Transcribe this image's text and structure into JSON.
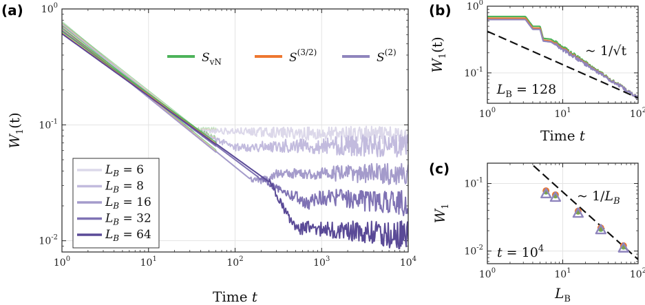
{
  "panel_labels": {
    "a": "(a)",
    "b": "(b)",
    "c": "(c)"
  },
  "colors": {
    "svn": "#4db35a",
    "s32": "#ee7730",
    "s2": "#8f85bd",
    "LB": [
      "#dcd8ea",
      "#c2bbde",
      "#a49bcb",
      "#7f72b4",
      "#5a4a97"
    ]
  },
  "chart_data": [
    {
      "id": "a",
      "type": "line",
      "title": "",
      "xlabel": "Time t",
      "ylabel": "W_1(t)",
      "xscale": "log",
      "yscale": "log",
      "xlim": [
        1,
        10000
      ],
      "ylim": [
        0.008,
        1
      ],
      "grid": true,
      "xticks": [
        1,
        10,
        100,
        1000,
        10000
      ],
      "xtick_labels": [
        {
          "b": "10",
          "e": "0"
        },
        {
          "b": "10",
          "e": "1"
        },
        {
          "b": "10",
          "e": "2"
        },
        {
          "b": "10",
          "e": "3"
        },
        {
          "b": "10",
          "e": "4"
        }
      ],
      "yticks": [
        0.01,
        0.1,
        1
      ],
      "ytick_labels": [
        {
          "b": "10",
          "e": "-2"
        },
        {
          "b": "10",
          "e": "-1"
        },
        {
          "b": "10",
          "e": "0"
        }
      ],
      "entropy_legend": [
        {
          "key": "svn",
          "label": "S",
          "sub": "vN",
          "sup": ""
        },
        {
          "key": "s32",
          "label": "S",
          "sub": "",
          "sup": "(3/2)"
        },
        {
          "key": "s2",
          "label": "S",
          "sub": "",
          "sup": "(2)"
        }
      ],
      "legend_placement": "lower-left",
      "size_legend": [
        {
          "label": "L_B = 6",
          "LB": 6
        },
        {
          "label": "L_B = 8",
          "LB": 8
        },
        {
          "label": "L_B = 16",
          "LB": 16
        },
        {
          "label": "L_B = 32",
          "LB": 32
        },
        {
          "label": "L_B = 64",
          "LB": 64
        }
      ],
      "series": [
        {
          "LB": 6,
          "knots": [
            [
              1,
              0.76
            ],
            [
              30,
              0.09
            ],
            [
              10000,
              0.08
            ]
          ],
          "plateau": 0.08
        },
        {
          "LB": 8,
          "knots": [
            [
              1,
              0.74
            ],
            [
              40,
              0.085
            ],
            [
              100,
              0.064
            ],
            [
              400,
              0.066
            ],
            [
              10000,
              0.066
            ]
          ],
          "plateau": 0.066
        },
        {
          "LB": 16,
          "knots": [
            [
              1,
              0.7
            ],
            [
              150,
              0.034
            ],
            [
              200,
              0.033
            ],
            [
              300,
              0.038
            ],
            [
              10000,
              0.038
            ]
          ],
          "plateau": 0.038
        },
        {
          "LB": 32,
          "knots": [
            [
              1,
              0.66
            ],
            [
              180,
              0.036
            ],
            [
              280,
              0.03
            ],
            [
              700,
              0.021
            ],
            [
              900,
              0.024
            ],
            [
              10000,
              0.021
            ]
          ],
          "plateau": 0.021
        },
        {
          "LB": 64,
          "knots": [
            [
              1,
              0.62
            ],
            [
              250,
              0.032
            ],
            [
              350,
              0.02
            ],
            [
              500,
              0.0125
            ],
            [
              700,
              0.013
            ],
            [
              10000,
              0.011
            ]
          ],
          "plateau": 0.011
        }
      ]
    },
    {
      "id": "b",
      "type": "line",
      "title": "",
      "xlabel": "Time t",
      "ylabel": "W_1(t)",
      "xscale": "log",
      "yscale": "log",
      "xlim": [
        1,
        100
      ],
      "ylim": [
        0.035,
        1
      ],
      "grid": true,
      "xticks": [
        1,
        10,
        100
      ],
      "xtick_labels": [
        {
          "b": "10",
          "e": "0"
        },
        {
          "b": "10",
          "e": "1"
        },
        {
          "b": "10",
          "e": "2"
        }
      ],
      "yticks": [
        0.1,
        1
      ],
      "ytick_labels": [
        {
          "b": "10",
          "e": "-1"
        },
        {
          "b": "10",
          "e": "0"
        }
      ],
      "annotation_LB": "L_B = 128",
      "annotation_fit": "~ 1/√t",
      "fit_line": {
        "form": "a/sqrt(t)",
        "a": 0.42
      },
      "series": [
        {
          "key": "svn",
          "knots": [
            [
              1,
              0.7
            ],
            [
              3.2,
              0.7
            ],
            [
              4,
              0.5
            ],
            [
              5,
              0.5
            ],
            [
              5.5,
              0.33
            ],
            [
              7,
              0.32
            ],
            [
              100,
              0.042
            ]
          ]
        },
        {
          "key": "s32",
          "knots": [
            [
              1,
              0.66
            ],
            [
              3.2,
              0.66
            ],
            [
              4,
              0.47
            ],
            [
              5,
              0.47
            ],
            [
              5.5,
              0.31
            ],
            [
              7,
              0.3
            ],
            [
              100,
              0.042
            ]
          ]
        },
        {
          "key": "s2",
          "knots": [
            [
              1,
              0.63
            ],
            [
              3.2,
              0.63
            ],
            [
              4,
              0.45
            ],
            [
              5,
              0.45
            ],
            [
              5.5,
              0.3
            ],
            [
              7,
              0.29
            ],
            [
              100,
              0.042
            ]
          ]
        }
      ]
    },
    {
      "id": "c",
      "type": "scatter",
      "title": "",
      "xlabel": "L_B",
      "ylabel": "W_1",
      "xscale": "log",
      "yscale": "log",
      "xlim": [
        1,
        100
      ],
      "ylim": [
        0.0065,
        0.2
      ],
      "grid": true,
      "xticks": [
        1,
        10,
        100
      ],
      "xtick_labels": [
        {
          "b": "10",
          "e": "0"
        },
        {
          "b": "10",
          "e": "1"
        },
        {
          "b": "10",
          "e": "2"
        }
      ],
      "yticks": [
        0.01,
        0.1
      ],
      "ytick_labels": [
        {
          "b": "10",
          "e": "-2"
        },
        {
          "b": "10",
          "e": "-1"
        }
      ],
      "annotation_t": "t = 10^4",
      "annotation_fit": "~ 1/L_B",
      "fit_line": {
        "form": "a/L",
        "a": 0.75
      },
      "points": [
        {
          "x": 6,
          "svn": 0.075,
          "s32": 0.078,
          "s2": 0.07
        },
        {
          "x": 8,
          "svn": 0.066,
          "s32": 0.068,
          "s2": 0.062
        },
        {
          "x": 16,
          "svn": 0.038,
          "s32": 0.039,
          "s2": 0.036
        },
        {
          "x": 32,
          "svn": 0.021,
          "s32": 0.022,
          "s2": 0.0205
        },
        {
          "x": 64,
          "svn": 0.0115,
          "s32": 0.012,
          "s2": 0.011
        }
      ]
    }
  ]
}
